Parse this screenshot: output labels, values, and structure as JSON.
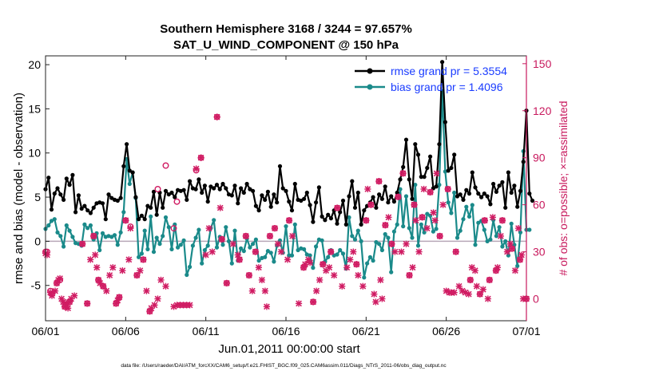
{
  "chart_data": {
    "type": "line",
    "title_line1": "Southern Hemisphere 3168 / 3244 = 97.657%",
    "title_line2": "SAT_U_WIND_COMPONENT @ 150 hPa",
    "xlabel": "Jun.01,2011 00:00:00 start",
    "ylabel": "rmse and bias (model - observation)",
    "y2label": "# of obs: o=possible; ×=assimilated",
    "footnote": "data file: /Users/raeder/DAI/ATM_forcXX/CAM6_setup/f.e21.FHIST_BGC.f09_025.CAM6assim.011/Diags_NTrS_2011-06/obs_diag_output.nc",
    "xlim": [
      0,
      30
    ],
    "ylim": [
      -9,
      21
    ],
    "y2lim": [
      -14,
      155
    ],
    "x_ticks": [
      0,
      5,
      10,
      15,
      20,
      25,
      30
    ],
    "x_tick_labels": [
      "06/01",
      "06/06",
      "06/11",
      "06/16",
      "06/21",
      "06/26",
      "07/01"
    ],
    "y_ticks": [
      -5,
      0,
      5,
      10,
      15,
      20
    ],
    "y_tick_labels": [
      "-5",
      "0",
      "5",
      "10",
      "15",
      "20"
    ],
    "y2_ticks": [
      0,
      30,
      60,
      90,
      120,
      150
    ],
    "y2_tick_labels": [
      "0",
      "30",
      "60",
      "90",
      "120",
      "150"
    ],
    "legend_position": "top-right",
    "colors": {
      "rmse": "#000000",
      "bias": "#1a8a8a",
      "obs": "#d01c63",
      "zero_line": "#b8a8b8",
      "legend_text": "#1a3cff",
      "right_axis": "#c8195d"
    },
    "series": [
      {
        "name": "rmse",
        "legend_label": "rmse grand pr = 5.3554",
        "values": [
          5.9,
          7.2,
          3.6,
          5.4,
          6.0,
          5.3,
          4.7,
          7.1,
          6.4,
          7.5,
          3.3,
          5.2,
          3.7,
          4.0,
          3.5,
          3.2,
          3.8,
          4.3,
          4.4,
          4.3,
          2.5,
          5.3,
          4.9,
          4.7,
          4.6,
          4.9,
          8.5,
          11.0,
          8.0,
          7.8,
          5.0,
          2.5,
          2.9,
          2.5,
          4.0,
          3.8,
          5.6,
          3.0,
          5.5,
          3.8,
          5.7,
          5.3,
          5.5,
          5.0,
          5.8,
          5.7,
          5.8,
          4.7,
          6.8,
          6.0,
          5.9,
          7.0,
          5.5,
          6.3,
          4.5,
          6.2,
          6.0,
          6.4,
          5.9,
          6.5,
          6.0,
          5.3,
          5.2,
          6.3,
          4.3,
          6.0,
          5.5,
          6.5,
          5.9,
          5.7,
          4.0,
          3.5,
          5.2,
          4.7,
          5.6,
          3.9,
          5.3,
          4.4,
          8.5,
          6.0,
          5.7,
          4.5,
          3.5,
          6.5,
          4.7,
          4.6,
          4.8,
          5.5,
          4.1,
          2.2,
          4.4,
          6.1,
          2.8,
          2.4,
          3.0,
          2.6,
          3.5,
          2.0,
          3.3,
          4.6,
          1.9,
          5.1,
          6.8,
          3.8,
          5.5,
          1.9,
          3.5,
          4.0,
          4.4,
          5.0,
          3.8,
          5.3,
          4.8,
          6.2,
          4.4,
          5.1,
          4.5,
          5.5,
          7.0,
          8.4,
          11.5,
          7.0,
          4.8,
          11.0,
          9.8,
          7.3,
          7.3,
          8.3,
          9.6,
          6.0,
          6.2,
          11.0,
          20.3,
          13.5,
          8.0,
          8.3,
          9.8,
          5.1,
          5.3,
          4.7,
          5.8,
          5.4,
          7.8,
          6.1,
          5.4,
          5.0,
          5.4,
          5.1,
          4.2,
          6.5,
          5.6,
          6.3,
          6.7,
          3.8,
          7.8,
          5.5,
          6.3,
          3.9,
          5.7,
          9.0,
          14.8,
          5.4,
          4.6
        ],
        "x_first": 0,
        "x_step": 0.1875
      },
      {
        "name": "bias",
        "legend_label": "bias grand pr = 1.4096",
        "values": [
          1.4,
          1.8,
          2.3,
          2.5,
          1.0,
          0.6,
          -0.6,
          1.8,
          1.2,
          0.5,
          -0.2,
          -0.3,
          -0.5,
          1.9,
          1.5,
          1.8,
          0.2,
          0.9,
          -1.0,
          0.9,
          0.5,
          0.6,
          0.5,
          0.7,
          -0.4,
          1.0,
          3.3,
          9.3,
          6.5,
          7.8,
          4.9,
          -1.8,
          -1.4,
          1.2,
          -0.9,
          2.8,
          -1.2,
          0.4,
          -0.3,
          0.6,
          2.7,
          1.6,
          -0.9,
          1.9,
          -0.7,
          -0.4,
          0.1,
          -3.8,
          -2.9,
          -0.5,
          0.4,
          1.3,
          -2.5,
          -1.0,
          -0.5,
          1.5,
          2.4,
          -0.7,
          0.5,
          -0.4,
          1.6,
          0.0,
          -2.5,
          1.2,
          -2.2,
          -0.8,
          -1.1,
          0.3,
          -0.7,
          -0.3,
          0.2,
          -2.2,
          -1.9,
          -1.8,
          -1.1,
          -1.3,
          -2.3,
          -0.5,
          0.1,
          -1.3,
          1.7,
          -1.6,
          -1.6,
          1.9,
          -1.0,
          -0.8,
          -0.9,
          -1.5,
          -1.6,
          -3.0,
          -0.6,
          0.2,
          0.1,
          -2.3,
          -1.8,
          -1.0,
          -1.6,
          -1.5,
          -1.0,
          -1.4,
          -3.1,
          2.7,
          0.6,
          0.2,
          1.2,
          0.0,
          -4.1,
          -2.5,
          -1.8,
          -2.2,
          -0.1,
          -0.3,
          -1.0,
          0.8,
          0.4,
          -3.5,
          1.1,
          1.9,
          5.9,
          1.7,
          5.1,
          1.5,
          0.4,
          6.4,
          -0.5,
          1.9,
          1.0,
          3.1,
          2.9,
          1.1,
          1.4,
          6.4,
          17.0,
          7.9,
          4.4,
          3.2,
          5.5,
          0.4,
          1.2,
          2.5,
          3.9,
          2.8,
          4.1,
          -0.4,
          2.1,
          2.3,
          1.3,
          0.0,
          0.2,
          2.4,
          0.6,
          1.6,
          -0.6,
          0.0,
          -1.6,
          2.0,
          -0.4,
          -2.8,
          1.0,
          10.2,
          1.3,
          1.3
        ],
        "x_first": 0,
        "x_step": 0.1875
      }
    ],
    "obs_possible": [
      [
        0.0,
        30
      ],
      [
        0.1,
        30
      ],
      [
        0.3,
        5
      ],
      [
        0.4,
        3
      ],
      [
        0.7,
        10
      ],
      [
        0.9,
        12
      ],
      [
        1.2,
        -5
      ],
      [
        1.5,
        -2
      ],
      [
        2.3,
        35
      ],
      [
        2.6,
        -3
      ],
      [
        3.0,
        40
      ],
      [
        3.3,
        12
      ],
      [
        3.6,
        8
      ],
      [
        4.4,
        -3
      ],
      [
        4.6,
        1
      ],
      [
        5.0,
        50
      ],
      [
        5.3,
        46
      ],
      [
        5.7,
        15
      ],
      [
        6.1,
        25
      ],
      [
        6.5,
        -8
      ],
      [
        7.0,
        70
      ],
      [
        7.5,
        85
      ],
      [
        8.0,
        45
      ],
      [
        8.2,
        62
      ],
      [
        9.4,
        82
      ],
      [
        9.7,
        90
      ],
      [
        10.7,
        116
      ],
      [
        11.0,
        38
      ],
      [
        11.3,
        10
      ],
      [
        12.1,
        25
      ],
      [
        12.5,
        40
      ],
      [
        12.7,
        15
      ],
      [
        13.1,
        30
      ],
      [
        14.0,
        40
      ],
      [
        14.3,
        45
      ],
      [
        15.2,
        50
      ],
      [
        16.1,
        20
      ],
      [
        16.7,
        -2
      ],
      [
        17.3,
        22
      ],
      [
        17.8,
        30
      ],
      [
        18.2,
        58
      ],
      [
        19.4,
        22
      ],
      [
        20.0,
        50
      ],
      [
        20.3,
        60
      ],
      [
        20.8,
        75
      ],
      [
        21.2,
        47
      ],
      [
        21.6,
        35
      ],
      [
        22.0,
        65
      ],
      [
        22.3,
        80
      ],
      [
        22.7,
        15
      ],
      [
        23.0,
        60
      ],
      [
        23.5,
        52
      ],
      [
        24.0,
        68
      ],
      [
        24.6,
        40
      ],
      [
        25.1,
        70
      ],
      [
        25.6,
        30
      ],
      [
        26.5,
        12
      ],
      [
        27.1,
        3
      ],
      [
        27.4,
        50
      ],
      [
        27.7,
        12
      ],
      [
        28.1,
        18
      ],
      [
        28.5,
        50
      ],
      [
        29.1,
        32
      ],
      [
        29.6,
        25
      ],
      [
        30.0,
        0
      ]
    ],
    "obs_assimilated": [
      [
        0.0,
        29
      ],
      [
        0.1,
        28
      ],
      [
        0.3,
        4
      ],
      [
        0.4,
        2
      ],
      [
        0.6,
        5
      ],
      [
        0.7,
        10
      ],
      [
        0.8,
        12
      ],
      [
        0.9,
        13
      ],
      [
        1.0,
        0
      ],
      [
        1.1,
        -2
      ],
      [
        1.2,
        -5
      ],
      [
        1.3,
        -3
      ],
      [
        1.4,
        -6
      ],
      [
        1.5,
        -2
      ],
      [
        1.6,
        0
      ],
      [
        1.8,
        2
      ],
      [
        2.3,
        35
      ],
      [
        2.6,
        -3
      ],
      [
        2.8,
        25
      ],
      [
        3.0,
        40
      ],
      [
        3.1,
        28
      ],
      [
        3.2,
        20
      ],
      [
        3.3,
        12
      ],
      [
        3.4,
        10
      ],
      [
        3.6,
        8
      ],
      [
        3.8,
        5
      ],
      [
        4.0,
        15
      ],
      [
        4.2,
        20
      ],
      [
        4.4,
        -3
      ],
      [
        4.5,
        -1
      ],
      [
        4.6,
        1
      ],
      [
        4.8,
        18
      ],
      [
        5.0,
        50
      ],
      [
        5.2,
        25
      ],
      [
        5.3,
        45
      ],
      [
        5.7,
        15
      ],
      [
        5.9,
        18
      ],
      [
        6.1,
        25
      ],
      [
        6.3,
        5
      ],
      [
        6.5,
        -8
      ],
      [
        6.6,
        -6
      ],
      [
        6.8,
        -4
      ],
      [
        7.0,
        0
      ],
      [
        7.2,
        12
      ],
      [
        7.5,
        8
      ],
      [
        8.0,
        -5
      ],
      [
        8.2,
        -4
      ],
      [
        8.4,
        -4
      ],
      [
        8.6,
        -4
      ],
      [
        8.8,
        -4
      ],
      [
        9.0,
        -4
      ],
      [
        9.4,
        83
      ],
      [
        9.7,
        90
      ],
      [
        10.0,
        28
      ],
      [
        10.2,
        45
      ],
      [
        10.4,
        30
      ],
      [
        10.7,
        116
      ],
      [
        10.9,
        58
      ],
      [
        11.0,
        38
      ],
      [
        11.3,
        10
      ],
      [
        11.7,
        35
      ],
      [
        12.0,
        28
      ],
      [
        12.1,
        25
      ],
      [
        12.5,
        40
      ],
      [
        12.7,
        15
      ],
      [
        12.9,
        5
      ],
      [
        13.1,
        30
      ],
      [
        13.3,
        20
      ],
      [
        13.5,
        12
      ],
      [
        13.7,
        5
      ],
      [
        13.8,
        -5
      ],
      [
        14.0,
        40
      ],
      [
        14.3,
        45
      ],
      [
        14.5,
        35
      ],
      [
        14.7,
        30
      ],
      [
        15.1,
        25
      ],
      [
        15.2,
        50
      ],
      [
        15.4,
        40
      ],
      [
        15.8,
        -3
      ],
      [
        16.1,
        20
      ],
      [
        16.2,
        22
      ],
      [
        16.4,
        25
      ],
      [
        16.5,
        23
      ],
      [
        16.7,
        -2
      ],
      [
        16.9,
        5
      ],
      [
        17.1,
        12
      ],
      [
        17.3,
        22
      ],
      [
        17.5,
        18
      ],
      [
        17.7,
        20
      ],
      [
        17.8,
        30
      ],
      [
        18.0,
        15
      ],
      [
        18.2,
        58
      ],
      [
        18.5,
        8
      ],
      [
        18.8,
        20
      ],
      [
        19.0,
        25
      ],
      [
        19.2,
        30
      ],
      [
        19.4,
        22
      ],
      [
        19.5,
        15
      ],
      [
        19.8,
        8
      ],
      [
        20.0,
        50
      ],
      [
        20.1,
        70
      ],
      [
        20.3,
        60
      ],
      [
        20.5,
        3
      ],
      [
        20.6,
        -2
      ],
      [
        20.8,
        75
      ],
      [
        20.9,
        12
      ],
      [
        21.0,
        0
      ],
      [
        21.2,
        47
      ],
      [
        21.4,
        52
      ],
      [
        21.6,
        35
      ],
      [
        21.8,
        30
      ],
      [
        22.0,
        65
      ],
      [
        22.2,
        30
      ],
      [
        22.3,
        80
      ],
      [
        22.5,
        35
      ],
      [
        22.7,
        15
      ],
      [
        22.9,
        20
      ],
      [
        23.0,
        60
      ],
      [
        23.1,
        50
      ],
      [
        23.3,
        30
      ],
      [
        23.5,
        52
      ],
      [
        23.6,
        70
      ],
      [
        23.8,
        45
      ],
      [
        24.0,
        68
      ],
      [
        24.2,
        55
      ],
      [
        24.3,
        50
      ],
      [
        24.4,
        80
      ],
      [
        24.6,
        40
      ],
      [
        24.8,
        60
      ],
      [
        25.0,
        5
      ],
      [
        25.1,
        70
      ],
      [
        25.2,
        4
      ],
      [
        25.3,
        4
      ],
      [
        25.5,
        4
      ],
      [
        25.6,
        30
      ],
      [
        25.8,
        8
      ],
      [
        26.0,
        5
      ],
      [
        26.2,
        4
      ],
      [
        26.4,
        3
      ],
      [
        26.5,
        12
      ],
      [
        26.6,
        20
      ],
      [
        26.8,
        18
      ],
      [
        26.9,
        8
      ],
      [
        27.1,
        3
      ],
      [
        27.3,
        6
      ],
      [
        27.4,
        50
      ],
      [
        27.6,
        0
      ],
      [
        27.7,
        12
      ],
      [
        27.9,
        52
      ],
      [
        28.1,
        18
      ],
      [
        28.2,
        20
      ],
      [
        28.4,
        40
      ],
      [
        28.5,
        50
      ],
      [
        28.8,
        30
      ],
      [
        29.0,
        35
      ],
      [
        29.1,
        32
      ],
      [
        29.3,
        18
      ],
      [
        29.5,
        45
      ],
      [
        29.6,
        25
      ],
      [
        29.7,
        28
      ],
      [
        29.8,
        0
      ],
      [
        30.0,
        0
      ]
    ]
  }
}
